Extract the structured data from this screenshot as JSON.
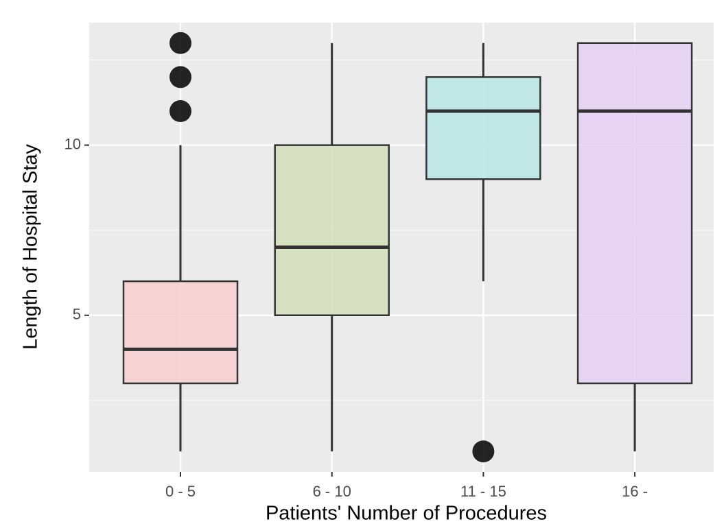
{
  "chart_data": {
    "type": "box",
    "x_label": "Patients' Number of Procedures",
    "y_label": "Length of Hospital Stay",
    "categories": [
      "0 - 5",
      "6 - 10",
      "11 - 15",
      "16 -"
    ],
    "colors": [
      "#f7cfd0",
      "#d3dfbb",
      "#b9e5e5",
      "#e6d0f5"
    ],
    "boxes": [
      {
        "min": 1,
        "q1": 3,
        "median": 4,
        "q3": 6,
        "max": 10,
        "outliers": [
          11,
          12,
          13
        ]
      },
      {
        "min": 1,
        "q1": 5,
        "median": 7,
        "q3": 10,
        "max": 13,
        "outliers": []
      },
      {
        "min": 6,
        "q1": 9,
        "median": 11,
        "q3": 12,
        "max": 13,
        "outliers": [
          1
        ]
      },
      {
        "min": 1,
        "q1": 3,
        "median": 11,
        "q3": 13,
        "max": 13,
        "outliers": []
      }
    ],
    "ylim": [
      0.4,
      13.6
    ],
    "yticks": [
      5,
      10
    ],
    "minor_yticks": [
      2.5,
      7.5,
      12.5
    ],
    "grid": true
  }
}
